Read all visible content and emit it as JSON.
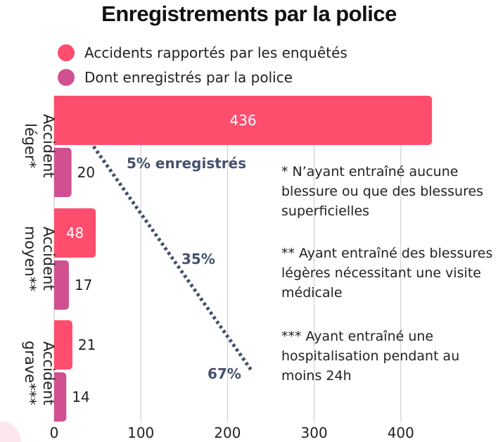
{
  "chart_data": {
    "type": "bar",
    "orientation": "horizontal",
    "title": "Enregistrements par la police",
    "categories": [
      "Accident léger*",
      "Accident moyen**",
      "Accident grave***"
    ],
    "category_lines": [
      [
        "Accident",
        "léger*"
      ],
      [
        "Accident",
        "moyen**"
      ],
      [
        "Accident",
        "grave***"
      ]
    ],
    "series": [
      {
        "name": "Accidents rapportés par les enquêtés",
        "values": [
          436,
          48,
          21
        ],
        "color": "#ff4d6d"
      },
      {
        "name": "Dont enregistrés par la police",
        "values": [
          20,
          17,
          14
        ],
        "color": "#d1508f"
      }
    ],
    "xlim": [
      0,
      450
    ],
    "xticks": [
      0,
      100,
      200,
      300,
      400
    ],
    "grid": true,
    "legend_position": "top-left",
    "annotations": [
      "5% enregistrés",
      "35%",
      "67%"
    ],
    "line_color": "#44506e"
  },
  "notes": [
    "* N’ayant entraîné aucune blessure ou que des blessures superficielles",
    "** Ayant entraîné des blessures légères nécessitant une visite médicale",
    "*** Ayant entraîné une hospitalisation pendant au moins 24h"
  ]
}
